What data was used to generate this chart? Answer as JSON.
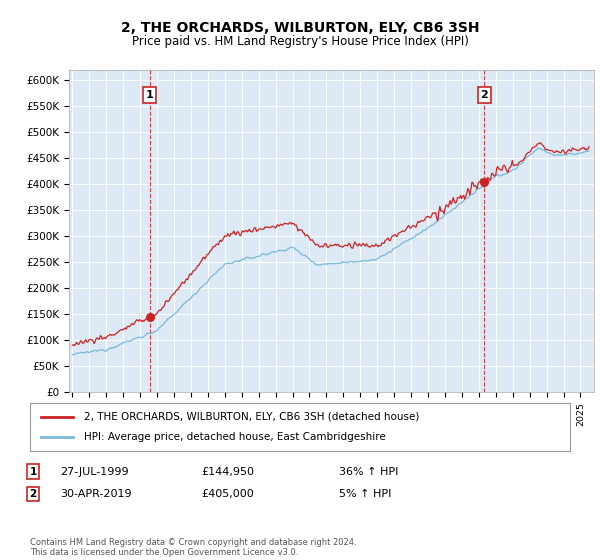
{
  "title": "2, THE ORCHARDS, WILBURTON, ELY, CB6 3SH",
  "subtitle": "Price paid vs. HM Land Registry's House Price Index (HPI)",
  "legend_line1": "2, THE ORCHARDS, WILBURTON, ELY, CB6 3SH (detached house)",
  "legend_line2": "HPI: Average price, detached house, East Cambridgeshire",
  "sale1_date": "27-JUL-1999",
  "sale1_price": 144950,
  "sale1_label": "36% ↑ HPI",
  "sale2_date": "30-APR-2019",
  "sale2_price": 405000,
  "sale2_label": "5% ↑ HPI",
  "footnote": "Contains HM Land Registry data © Crown copyright and database right 2024.\nThis data is licensed under the Open Government Licence v3.0.",
  "hpi_color": "#7ab8d9",
  "price_color": "#cc2222",
  "bg_color": "#ddeaf6",
  "ylim_min": 0,
  "ylim_max": 620000,
  "sale1_x": 1999.57,
  "sale2_x": 2019.33,
  "xmin": 1994.8,
  "xmax": 2025.8
}
